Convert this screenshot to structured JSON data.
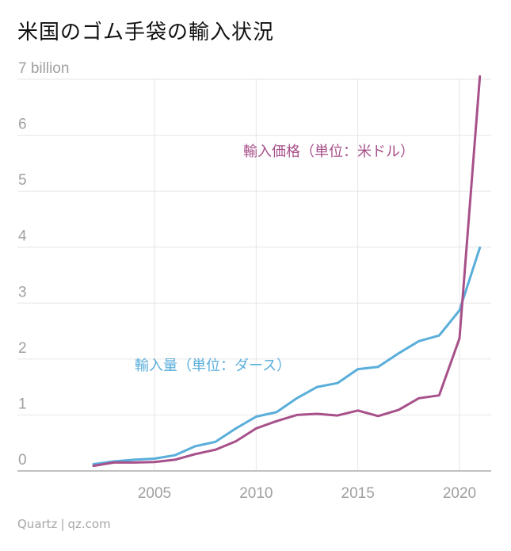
{
  "title": "米国のゴム手袋の輸入状況",
  "footer": {
    "brand": "Quartz",
    "separator": "|",
    "site": "qz.com"
  },
  "colors": {
    "value_series": "#a7508a",
    "volume_series": "#5aaedb"
  },
  "chart_data": {
    "type": "line",
    "title": "米国のゴム手袋の輸入状況",
    "xlabel": "",
    "ylabel": "",
    "xlim": [
      2000,
      2022
    ],
    "ylim": [
      0,
      7
    ],
    "grid": true,
    "x_ticks": [
      2005,
      2010,
      2015,
      2020
    ],
    "y_ticks": [
      {
        "value": 0,
        "label": "0"
      },
      {
        "value": 1,
        "label": "1"
      },
      {
        "value": 2,
        "label": "2"
      },
      {
        "value": 3,
        "label": "3"
      },
      {
        "value": 4,
        "label": "4"
      },
      {
        "value": 5,
        "label": "5"
      },
      {
        "value": 6,
        "label": "6"
      },
      {
        "value": 7,
        "label": "7 billion"
      }
    ],
    "series": [
      {
        "name": "輸入価格（単位：米ドル）",
        "color": "#a7508a",
        "x": [
          2002,
          2003,
          2004,
          2005,
          2006,
          2007,
          2008,
          2009,
          2010,
          2011,
          2012,
          2013,
          2014,
          2015,
          2016,
          2017,
          2018,
          2019,
          2020,
          2021
        ],
        "values": [
          0.09,
          0.15,
          0.15,
          0.16,
          0.2,
          0.3,
          0.38,
          0.53,
          0.76,
          0.89,
          1.0,
          1.02,
          0.99,
          1.08,
          0.98,
          1.09,
          1.3,
          1.35,
          2.37,
          7.05
        ]
      },
      {
        "name": "輸入量（単位：ダース）",
        "color": "#5aaedb",
        "x": [
          2002,
          2003,
          2004,
          2005,
          2006,
          2007,
          2008,
          2009,
          2010,
          2011,
          2012,
          2013,
          2014,
          2015,
          2016,
          2017,
          2018,
          2019,
          2020,
          2021
        ],
        "values": [
          0.12,
          0.17,
          0.2,
          0.22,
          0.28,
          0.44,
          0.52,
          0.76,
          0.97,
          1.05,
          1.3,
          1.5,
          1.57,
          1.82,
          1.86,
          2.1,
          2.32,
          2.42,
          2.87,
          3.99
        ]
      }
    ]
  }
}
